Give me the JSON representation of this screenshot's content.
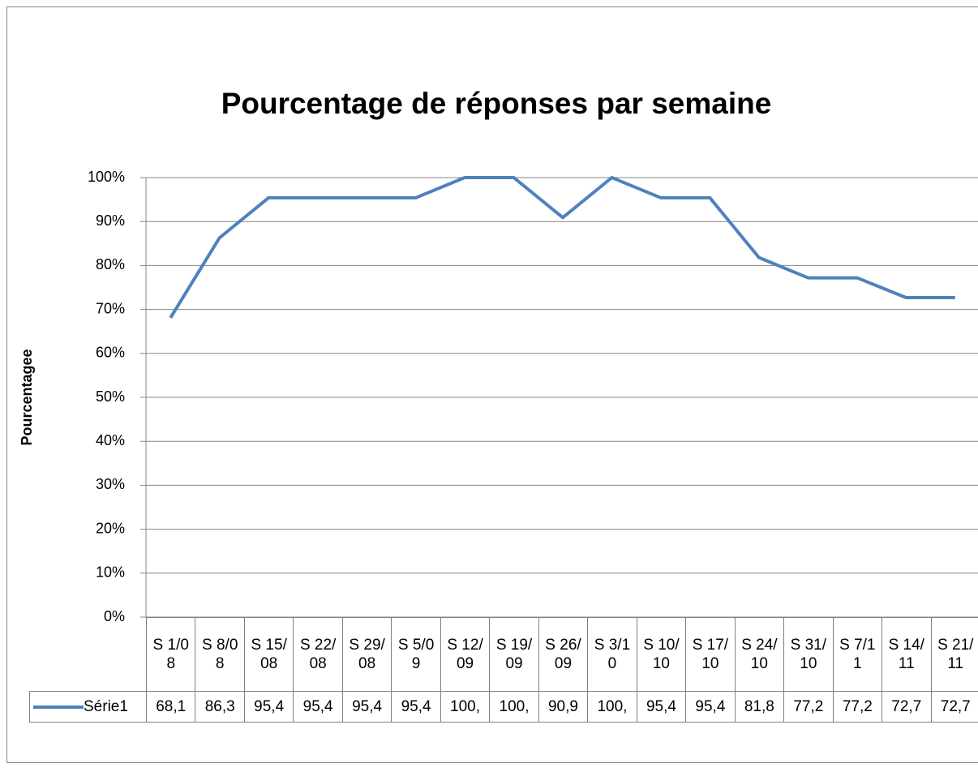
{
  "chart_data": {
    "type": "line",
    "title": "Pourcentage de réponses par semaine",
    "y_label": "Pourcentagee",
    "categories": [
      "S 1/08",
      "S 8/08",
      "S 15/08",
      "S 22/08",
      "S 29/08",
      "S 5/09",
      "S 12/09",
      "S 19/09",
      "S 26/09",
      "S 3/10",
      "S 10/10",
      "S 17/10",
      "S 24/10",
      "S 31/10",
      "S 7/11",
      "S 14/11",
      "S 21/11"
    ],
    "series": [
      {
        "name": "Série1",
        "color": "#4f81bd",
        "values": [
          68.1,
          86.3,
          95.4,
          95.4,
          95.4,
          95.4,
          100,
          100,
          90.9,
          100,
          95.4,
          95.4,
          81.8,
          77.2,
          77.2,
          72.7,
          72.7
        ],
        "value_labels": [
          "68,1",
          "86,3",
          "95,4",
          "95,4",
          "95,4",
          "95,4",
          "100,",
          "100,",
          "90,9",
          "100,",
          "95,4",
          "95,4",
          "81,8",
          "77,2",
          "77,2",
          "72,7",
          "72,7"
        ]
      }
    ],
    "ylim": [
      0,
      100
    ],
    "yticks": [
      {
        "value": 0,
        "label": "0%"
      },
      {
        "value": 10,
        "label": "10%"
      },
      {
        "value": 20,
        "label": "20%"
      },
      {
        "value": 30,
        "label": "30%"
      },
      {
        "value": 40,
        "label": "40%"
      },
      {
        "value": 50,
        "label": "50%"
      },
      {
        "value": 60,
        "label": "60%"
      },
      {
        "value": 70,
        "label": "70%"
      },
      {
        "value": 80,
        "label": "80%"
      },
      {
        "value": 90,
        "label": "90%"
      },
      {
        "value": 100,
        "label": "100%"
      }
    ],
    "grid": true
  }
}
